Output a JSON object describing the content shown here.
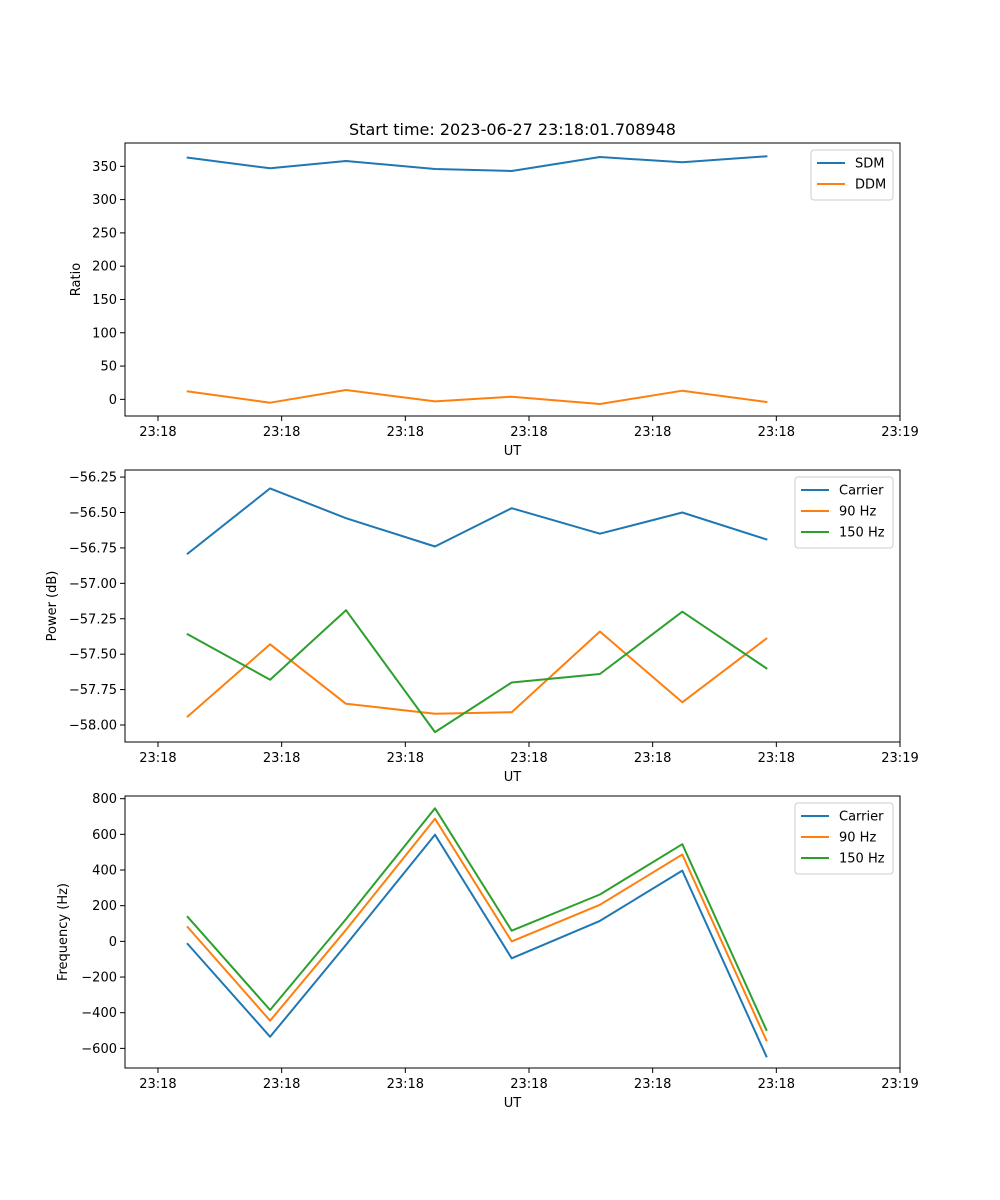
{
  "title": "Start time: 2023-06-27 23:18:01.708948",
  "colors": {
    "c0": "#1f77b4",
    "c1": "#ff7f0e",
    "c2": "#2ca02c"
  },
  "chart_data": [
    {
      "type": "line",
      "title": "Start time: 2023-06-27 23:18:01.708948",
      "xlabel": "UT",
      "ylabel": "Ratio",
      "xlim": [
        -0.4,
        9.0
      ],
      "ylim": [
        -25,
        385
      ],
      "x": [
        0.36,
        1.36,
        2.28,
        3.36,
        4.29,
        5.36,
        6.36,
        7.38
      ],
      "xticks": [
        0,
        1.5,
        3,
        4.5,
        6,
        7.5,
        9
      ],
      "xticklabels": [
        "23:18",
        "23:18",
        "23:18",
        "23:18",
        "23:18",
        "23:18",
        "23:19"
      ],
      "yticks": [
        0,
        50,
        100,
        150,
        200,
        250,
        300,
        350
      ],
      "yticklabels": [
        "0",
        "50",
        "100",
        "150",
        "200",
        "250",
        "300",
        "350"
      ],
      "legend_position": "top-right",
      "series": [
        {
          "name": "SDM",
          "color": "#1f77b4",
          "values": [
            363,
            347,
            358,
            346,
            343,
            364,
            356,
            365
          ]
        },
        {
          "name": "DDM",
          "color": "#ff7f0e",
          "values": [
            12,
            -5,
            14,
            -3,
            4,
            -7,
            13,
            -4
          ]
        }
      ]
    },
    {
      "type": "line",
      "title": "",
      "xlabel": "UT",
      "ylabel": "Power (dB)",
      "xlim": [
        -0.4,
        9.0
      ],
      "ylim": [
        -58.12,
        -56.2
      ],
      "x": [
        0.36,
        1.36,
        2.28,
        3.36,
        4.29,
        5.36,
        6.36,
        7.38
      ],
      "xticks": [
        0,
        1.5,
        3,
        4.5,
        6,
        7.5,
        9
      ],
      "xticklabels": [
        "23:18",
        "23:18",
        "23:18",
        "23:18",
        "23:18",
        "23:18",
        "23:19"
      ],
      "yticks": [
        -58.0,
        -57.75,
        -57.5,
        -57.25,
        -57.0,
        -56.75,
        -56.5,
        -56.25
      ],
      "yticklabels": [
        "−58.00",
        "−57.75",
        "−57.50",
        "−57.25",
        "−57.00",
        "−56.75",
        "−56.50",
        "−56.25"
      ],
      "legend_position": "top-right",
      "series": [
        {
          "name": "Carrier",
          "color": "#1f77b4",
          "values": [
            -56.79,
            -56.33,
            -56.54,
            -56.74,
            -56.47,
            -56.65,
            -56.5,
            -56.69
          ]
        },
        {
          "name": "90 Hz",
          "color": "#ff7f0e",
          "values": [
            -57.94,
            -57.43,
            -57.85,
            -57.92,
            -57.91,
            -57.34,
            -57.84,
            -57.39
          ]
        },
        {
          "name": "150 Hz",
          "color": "#2ca02c",
          "values": [
            -57.36,
            -57.68,
            -57.19,
            -58.05,
            -57.7,
            -57.64,
            -57.2,
            -57.6
          ]
        }
      ]
    },
    {
      "type": "line",
      "title": "",
      "xlabel": "UT",
      "ylabel": "Frequency (Hz)",
      "xlim": [
        -0.4,
        9.0
      ],
      "ylim": [
        -710,
        815
      ],
      "x": [
        0.36,
        1.36,
        2.28,
        3.36,
        4.29,
        5.36,
        6.36,
        7.38
      ],
      "xticks": [
        0,
        1.5,
        3,
        4.5,
        6,
        7.5,
        9
      ],
      "xticklabels": [
        "23:18",
        "23:18",
        "23:18",
        "23:18",
        "23:18",
        "23:18",
        "23:19"
      ],
      "yticks": [
        -600,
        -400,
        -200,
        0,
        200,
        400,
        600,
        800
      ],
      "yticklabels": [
        "−600",
        "−400",
        "−200",
        "0",
        "200",
        "400",
        "600",
        "800"
      ],
      "legend_position": "top-right",
      "series": [
        {
          "name": "Carrier",
          "color": "#1f77b4",
          "values": [
            -15,
            -535,
            -20,
            598,
            -95,
            115,
            397,
            -645
          ]
        },
        {
          "name": "90 Hz",
          "color": "#ff7f0e",
          "values": [
            80,
            -445,
            65,
            688,
            0,
            205,
            487,
            -555
          ]
        },
        {
          "name": "150 Hz",
          "color": "#2ca02c",
          "values": [
            137,
            -385,
            125,
            746,
            60,
            263,
            545,
            -497
          ]
        }
      ]
    }
  ]
}
